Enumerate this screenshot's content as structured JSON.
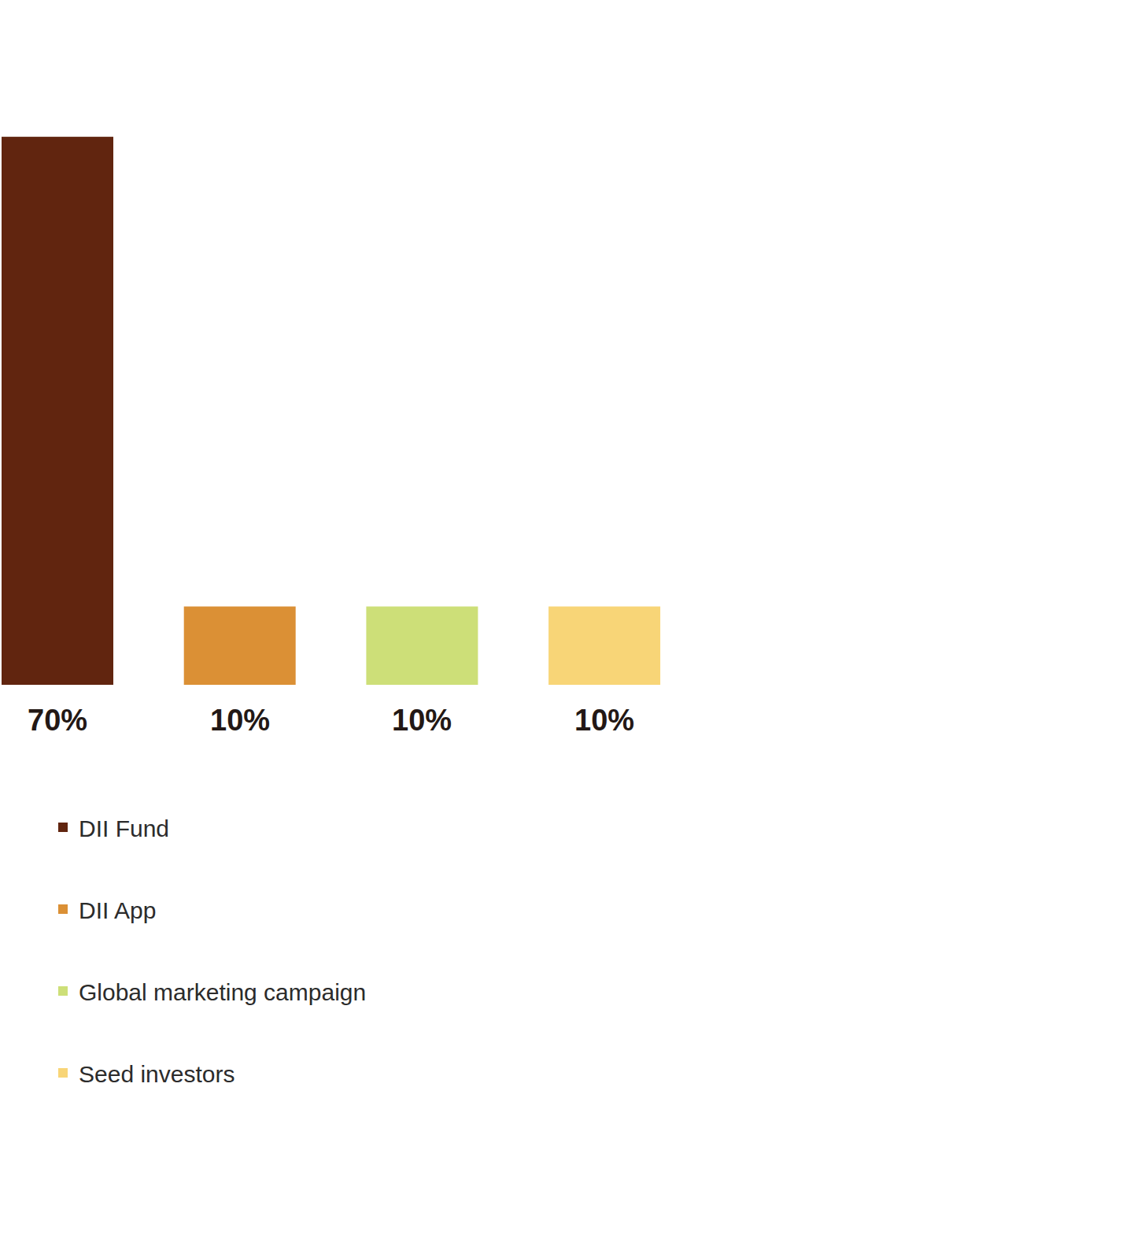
{
  "chart_data": {
    "type": "bar",
    "categories": [
      "DII Fund",
      "DII App",
      "Global marketing campaign",
      "Seed investors"
    ],
    "values": [
      70,
      10,
      10,
      10
    ],
    "value_labels": [
      "70%",
      "10%",
      "10%",
      "10%"
    ],
    "colors": [
      "#61250f",
      "#db9035",
      "#cddf78",
      "#f8d577"
    ],
    "data_labels": true,
    "tick_labels": false,
    "grid": false,
    "legend": "bottom left"
  }
}
